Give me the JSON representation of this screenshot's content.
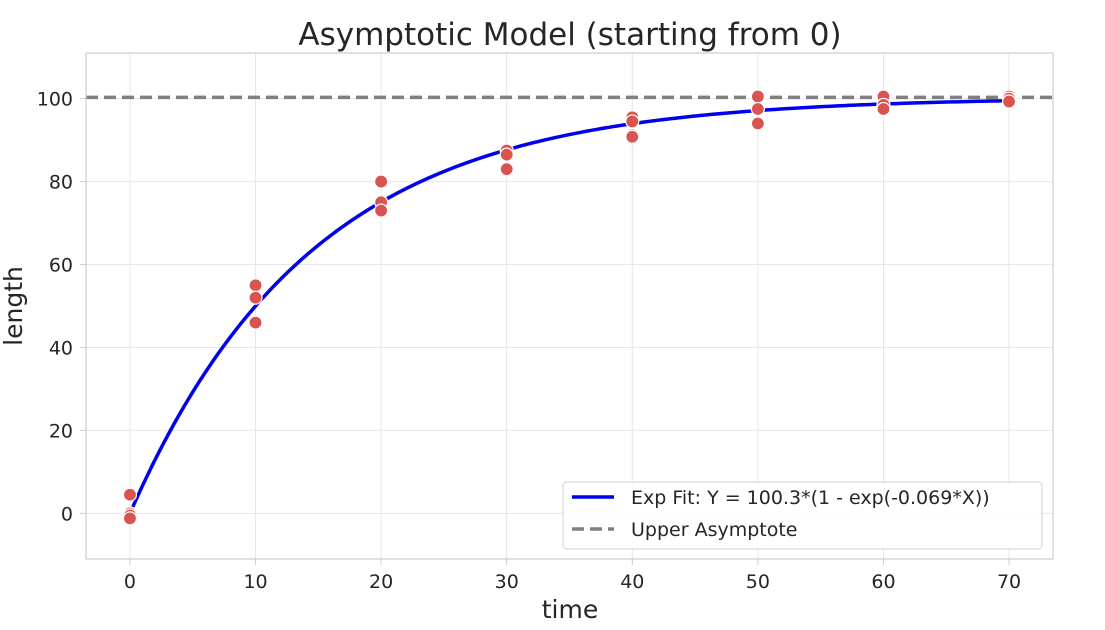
{
  "chart_data": {
    "type": "scatter",
    "title": "Asymptotic Model (starting from 0)",
    "xlabel": "time",
    "ylabel": "length",
    "xlim": [
      -3.5,
      73.5
    ],
    "ylim": [
      -11,
      111
    ],
    "xticks": [
      0,
      10,
      20,
      30,
      40,
      50,
      60,
      70
    ],
    "yticks": [
      0,
      20,
      40,
      60,
      80,
      100
    ],
    "grid": true,
    "legend_position": "lower-right",
    "points": {
      "color": "#d9534f",
      "x": [
        0,
        0,
        0,
        0,
        10,
        10,
        10,
        20,
        20,
        20,
        30,
        30,
        30,
        40,
        40,
        40,
        40,
        50,
        50,
        50,
        60,
        60,
        60,
        70,
        70,
        70
      ],
      "y": [
        4.5,
        0,
        -0.5,
        -1.2,
        55,
        52,
        46,
        80,
        75,
        73,
        87.5,
        86.5,
        83,
        95.5,
        94.5,
        91.2,
        90.8,
        100.5,
        97.5,
        94,
        100.5,
        98.5,
        97.5,
        100.5,
        100,
        99.3
      ]
    },
    "series": [
      {
        "name": "Exp Fit: Y = 100.3*(1 - exp(-0.069*X))",
        "kind": "line",
        "color": "#0000ee",
        "function": {
          "asymptote": 100.3,
          "rate": 0.069
        },
        "x_range": [
          0,
          70
        ]
      },
      {
        "name": "Upper Asymptote",
        "kind": "hline",
        "color": "#808080",
        "dashed": true,
        "y": 100.3
      }
    ]
  }
}
